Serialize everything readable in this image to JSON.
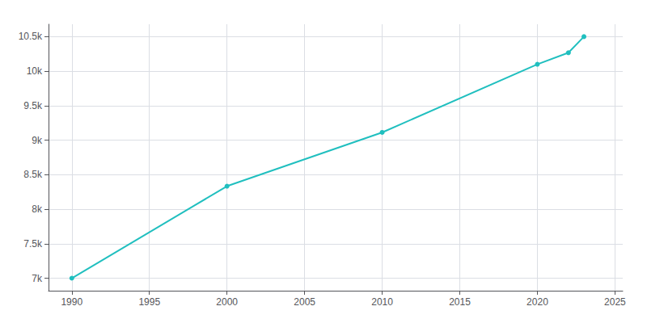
{
  "chart_data": {
    "type": "line",
    "x": [
      1990,
      2000,
      2010,
      2020,
      2022,
      2023
    ],
    "values": [
      7001,
      8334,
      9113,
      10100,
      10267,
      10500
    ],
    "color": "#20BFBF",
    "marker": "circle",
    "xlim": [
      1988.5,
      2025.5
    ],
    "ylim": [
      6820,
      10680
    ],
    "xticks": [
      1990,
      1995,
      2000,
      2005,
      2010,
      2015,
      2020,
      2025
    ],
    "yticks": [
      {
        "value": 7000,
        "label": "7k"
      },
      {
        "value": 7500,
        "label": "7.5k"
      },
      {
        "value": 8000,
        "label": "8k"
      },
      {
        "value": 8500,
        "label": "8.5k"
      },
      {
        "value": 9000,
        "label": "9k"
      },
      {
        "value": 9500,
        "label": "9.5k"
      },
      {
        "value": 10000,
        "label": "10k"
      },
      {
        "value": 10500,
        "label": "10.5k"
      }
    ],
    "grid": true
  }
}
